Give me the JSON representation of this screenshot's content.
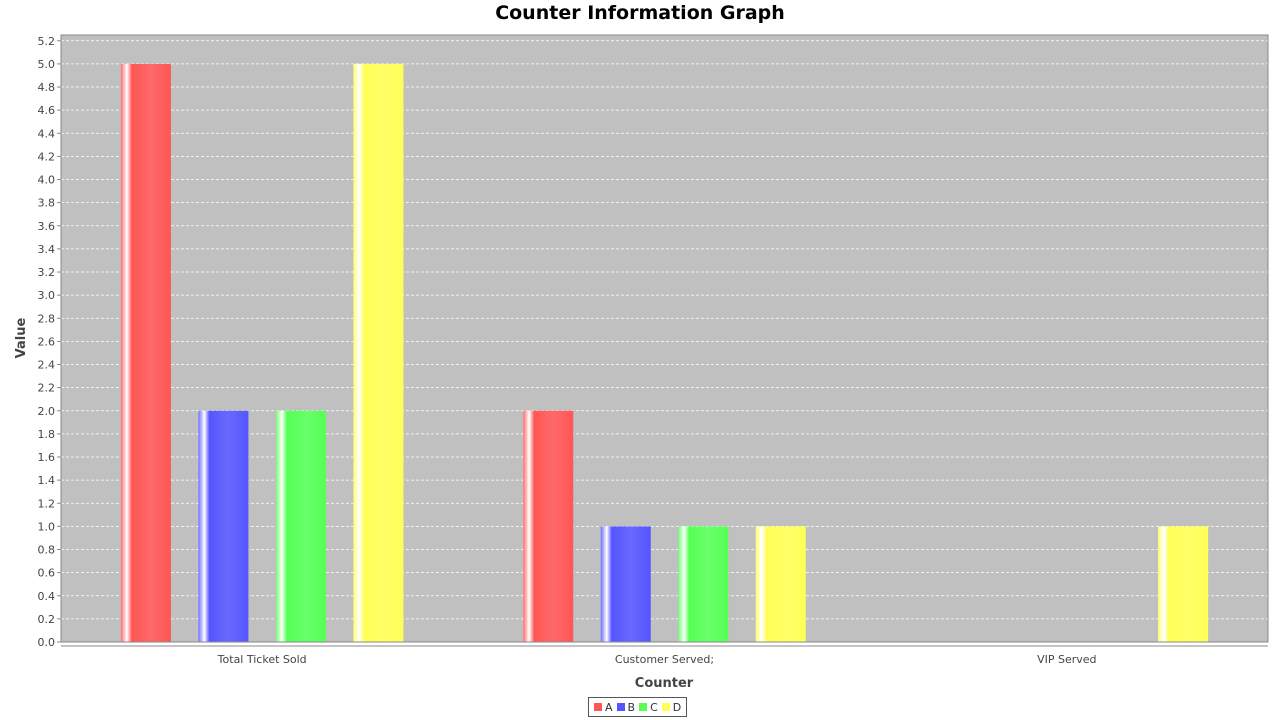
{
  "chart_data": {
    "type": "bar",
    "title": "Counter Information Graph",
    "xlabel": "Counter",
    "ylabel": "Value",
    "categories": [
      "Total Ticket Sold",
      "Customer Served;",
      "VIP Served"
    ],
    "series": [
      {
        "name": "A",
        "color": "#ff5555",
        "values": [
          5,
          2,
          0
        ]
      },
      {
        "name": "B",
        "color": "#5555ff",
        "values": [
          2,
          1,
          0
        ]
      },
      {
        "name": "C",
        "color": "#55ff55",
        "values": [
          2,
          1,
          0
        ]
      },
      {
        "name": "D",
        "color": "#ffff55",
        "values": [
          5,
          1,
          1
        ]
      }
    ],
    "ylim": [
      0,
      5.25
    ],
    "yticks": [
      "0.0",
      "0.2",
      "0.4",
      "0.6",
      "0.8",
      "1.0",
      "1.2",
      "1.4",
      "1.6",
      "1.8",
      "2.0",
      "2.2",
      "2.4",
      "2.6",
      "2.8",
      "3.0",
      "3.2",
      "3.4",
      "3.6",
      "3.8",
      "4.0",
      "4.2",
      "4.4",
      "4.6",
      "4.8",
      "5.0",
      "5.2"
    ],
    "grid": true,
    "legend_position": "bottom",
    "plot_background": "#c0c0c0"
  }
}
